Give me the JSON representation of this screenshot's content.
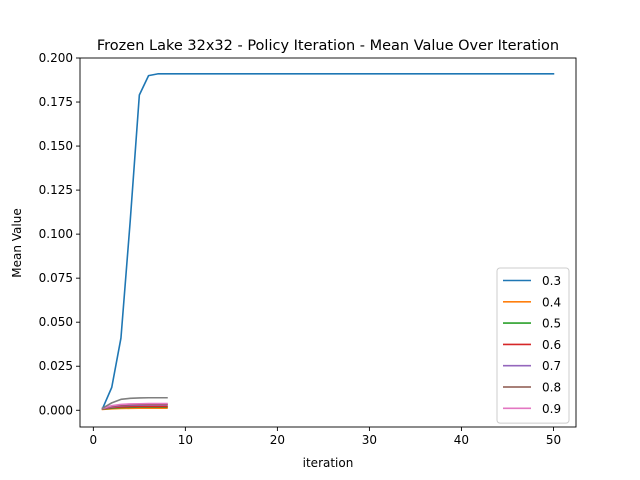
{
  "chart_data": {
    "type": "line",
    "title": "Frozen Lake 32x32 - Policy Iteration - Mean Value Over Iteration",
    "xlabel": "iteration",
    "ylabel": "Mean Value",
    "xlim": [
      -1.45,
      52.45
    ],
    "ylim": [
      -0.0095,
      0.2
    ],
    "x_ticks": [
      0,
      10,
      20,
      30,
      40,
      50
    ],
    "y_ticks": [
      0.0,
      0.025,
      0.05,
      0.075,
      0.1,
      0.125,
      0.15,
      0.175,
      0.2
    ],
    "x_tick_labels": [
      "0",
      "10",
      "20",
      "30",
      "40",
      "50"
    ],
    "y_tick_labels": [
      "0.000",
      "0.025",
      "0.050",
      "0.075",
      "0.100",
      "0.125",
      "0.150",
      "0.175",
      "0.200"
    ],
    "grid": false,
    "legend_position": "lower-right",
    "series": [
      {
        "name": "0.3",
        "color": "#1f77b4",
        "x": [
          1,
          2,
          3,
          4,
          5,
          6,
          7,
          8,
          9,
          10,
          11,
          12,
          13,
          14,
          15,
          16,
          17,
          18,
          19,
          20,
          21,
          22,
          23,
          24,
          25,
          26,
          27,
          28,
          29,
          30,
          31,
          32,
          33,
          34,
          35,
          36,
          37,
          38,
          39,
          40,
          41,
          42,
          43,
          44,
          45,
          46,
          47,
          48,
          49,
          50
        ],
        "y": [
          0.001,
          0.013,
          0.041,
          0.107,
          0.179,
          0.19,
          0.191,
          0.191,
          0.191,
          0.191,
          0.191,
          0.191,
          0.191,
          0.191,
          0.191,
          0.191,
          0.191,
          0.191,
          0.191,
          0.191,
          0.191,
          0.191,
          0.191,
          0.191,
          0.191,
          0.191,
          0.191,
          0.191,
          0.191,
          0.191,
          0.191,
          0.191,
          0.191,
          0.191,
          0.191,
          0.191,
          0.191,
          0.191,
          0.191,
          0.191,
          0.191,
          0.191,
          0.191,
          0.191,
          0.191,
          0.191,
          0.191,
          0.191,
          0.191,
          0.191
        ]
      },
      {
        "name": "0.4",
        "color": "#ff7f0e",
        "x": [
          1,
          2,
          3,
          4,
          5,
          6,
          7,
          8
        ],
        "y": [
          0.0005,
          0.0008,
          0.001,
          0.0011,
          0.0012,
          0.0012,
          0.0012,
          0.0012
        ]
      },
      {
        "name": "0.5",
        "color": "#2ca02c",
        "x": [
          1,
          2,
          3,
          4,
          5,
          6,
          7,
          8
        ],
        "y": [
          0.0007,
          0.0012,
          0.0015,
          0.0017,
          0.0018,
          0.0018,
          0.0018,
          0.0018
        ]
      },
      {
        "name": "0.6",
        "color": "#d62728",
        "x": [
          1,
          2,
          3,
          4,
          5,
          6,
          7,
          8
        ],
        "y": [
          0.0008,
          0.0015,
          0.0019,
          0.0021,
          0.0022,
          0.0022,
          0.0022,
          0.0022
        ]
      },
      {
        "name": "0.7",
        "color": "#9467bd",
        "x": [
          1,
          2,
          3,
          4,
          5,
          6,
          7,
          8
        ],
        "y": [
          0.0009,
          0.0019,
          0.0025,
          0.0028,
          0.0029,
          0.003,
          0.003,
          0.003
        ]
      },
      {
        "name": "0.8",
        "color": "#8c564b",
        "x": [
          1,
          2,
          3,
          4,
          5,
          6,
          7,
          8
        ],
        "y": [
          0.001,
          0.0022,
          0.0029,
          0.0032,
          0.0033,
          0.0034,
          0.0034,
          0.0034
        ]
      },
      {
        "name": "0.9",
        "color": "#e377c2",
        "x": [
          1,
          2,
          3,
          4,
          5,
          6,
          7,
          8
        ],
        "y": [
          0.0011,
          0.0026,
          0.0033,
          0.0036,
          0.0037,
          0.0038,
          0.0038,
          0.0038
        ]
      },
      {
        "name": "",
        "color": "#7f7f7f",
        "x": [
          1,
          2,
          3,
          4,
          5,
          6,
          7,
          8
        ],
        "y": [
          0.0012,
          0.0042,
          0.0062,
          0.0068,
          0.007,
          0.0071,
          0.0071,
          0.0071
        ]
      }
    ]
  }
}
